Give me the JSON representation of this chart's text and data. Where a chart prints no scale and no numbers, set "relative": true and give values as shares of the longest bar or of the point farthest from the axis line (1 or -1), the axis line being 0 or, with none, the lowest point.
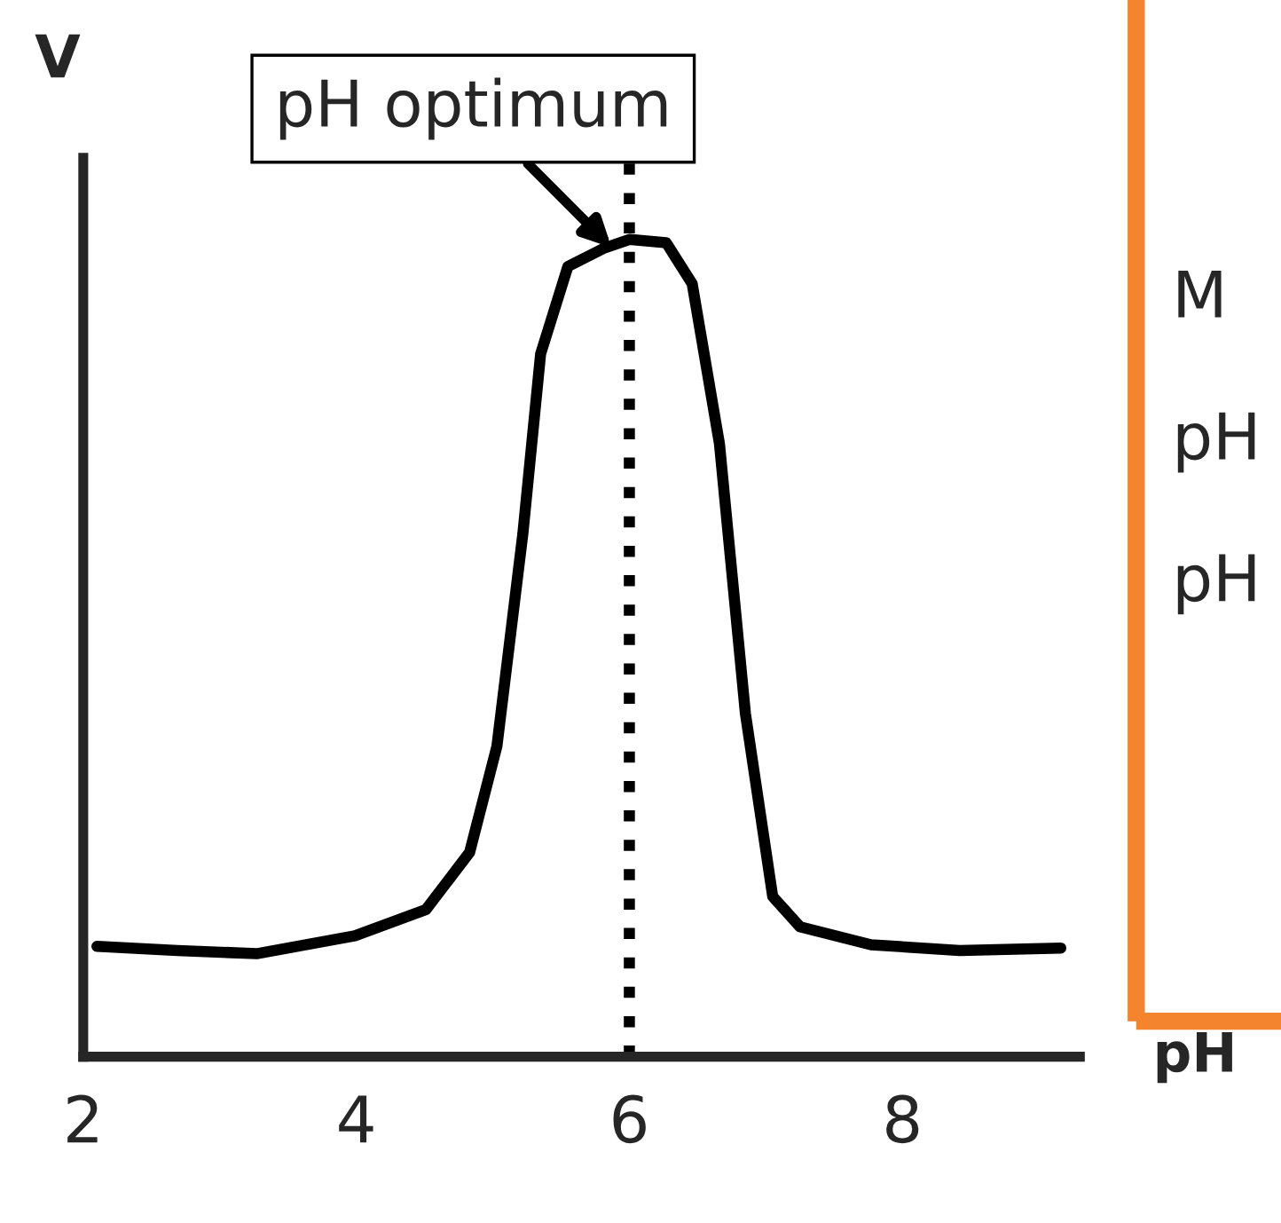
{
  "chart_data": {
    "type": "line",
    "xlabel": "pH",
    "ylabel": "V",
    "relative": true,
    "x": [
      2.1,
      2.69,
      3.27,
      3.99,
      4.51,
      4.83,
      5.03,
      5.22,
      5.35,
      5.55,
      5.81,
      6.0,
      6.27,
      6.46,
      6.66,
      6.85,
      7.05,
      7.25,
      7.77,
      8.42,
      9.16
    ],
    "series": [
      {
        "color": "#000000",
        "values": [
          0.135,
          0.13,
          0.126,
          0.148,
          0.18,
          0.25,
          0.38,
          0.64,
          0.86,
          0.967,
          0.989,
          1.0,
          0.996,
          0.946,
          0.75,
          0.42,
          0.196,
          0.159,
          0.137,
          0.13,
          0.133
        ]
      }
    ],
    "xlim": [
      2,
      9.3
    ],
    "xticks": [
      2,
      4,
      6,
      8
    ],
    "marker": "none",
    "line_style": "solid",
    "grid": false,
    "ref_lines": [
      {
        "axis": "x",
        "value": 6,
        "color": "#000000",
        "line_style": "dotted"
      }
    ],
    "annotations": [
      {
        "text": "pH optimum",
        "x": 5.87,
        "y": 0.99
      },
      "M",
      "pH",
      "pH"
    ]
  }
}
